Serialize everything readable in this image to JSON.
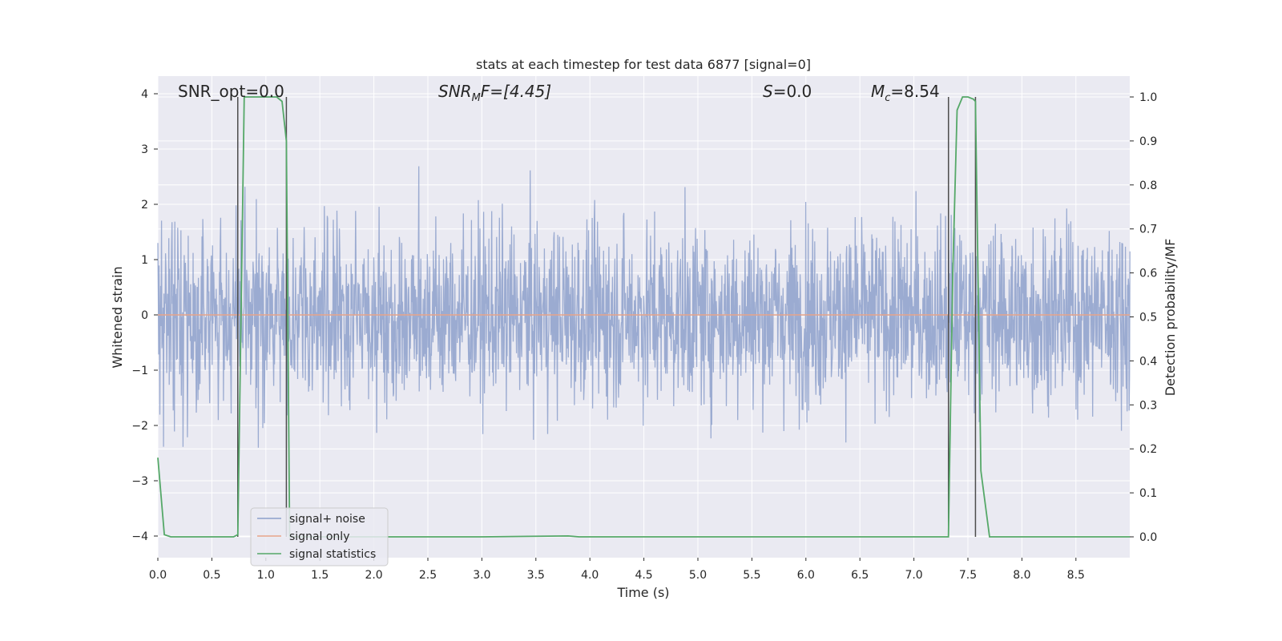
{
  "chart_data": {
    "type": "line",
    "title": "stats at each timestep for test data 6877 [signal=0]",
    "xlabel": "Time (s)",
    "ylabel": "Whitened strain",
    "ylabel_right": "Detection probability/MF",
    "xlim": [
      0.0,
      9.0
    ],
    "ylim": [
      -4.4,
      4.3
    ],
    "ylim_right": [
      -0.05,
      1.03
    ],
    "x_ticks": [
      "0.0",
      "0.5",
      "1.0",
      "1.5",
      "2.0",
      "2.5",
      "3.0",
      "3.5",
      "4.0",
      "4.5",
      "5.0",
      "5.5",
      "6.0",
      "6.5",
      "7.0",
      "7.5",
      "8.0",
      "8.5"
    ],
    "y_ticks": [
      "4",
      "3",
      "2",
      "1",
      "0",
      "−1",
      "−2",
      "−3",
      "−4"
    ],
    "y_right_ticks": [
      "1.0",
      "0.9",
      "0.8",
      "0.7",
      "0.6",
      "0.5",
      "0.4",
      "0.3",
      "0.2",
      "0.1",
      "0.0"
    ],
    "grid": true,
    "legend_position": "lower-left",
    "annotations": {
      "snr_opt": "SNR_opt=0.0",
      "snr_mf_main": "SNR",
      "snr_mf_sub": "M",
      "snr_mf_rest": "F=[4.45]",
      "s_main": "S",
      "s_rest": "=0.0",
      "mc_main": "M",
      "mc_sub": "c",
      "mc_rest": "=8.54"
    },
    "vertical_markers": [
      0.74,
      1.19,
      7.32,
      7.57
    ],
    "series": [
      {
        "name": "signal+ noise",
        "color": "#8da0cb",
        "description_values": "whitened strain noise, approx. within [-3.7, 3.95]"
      },
      {
        "name": "signal only",
        "color": "#e8a58a",
        "values": "zero everywhere"
      },
      {
        "name": "signal statistics",
        "color": "#55a868",
        "axis": "right",
        "x": [
          0.0,
          0.06,
          0.12,
          0.2,
          0.4,
          0.6,
          0.7,
          0.74,
          0.77,
          0.8,
          0.9,
          1.0,
          1.1,
          1.15,
          1.19,
          1.22,
          1.3,
          2.0,
          3.0,
          3.8,
          3.9,
          4.5,
          5.0,
          6.0,
          7.0,
          7.32,
          7.36,
          7.4,
          7.45,
          7.5,
          7.55,
          7.57,
          7.62,
          7.7,
          7.8,
          8.5,
          9.0
        ],
        "values": [
          0.18,
          0.005,
          0.0,
          0.0,
          0.0,
          0.0,
          0.0,
          0.005,
          0.5,
          1.0,
          1.0,
          1.0,
          1.0,
          0.99,
          0.9,
          0.0,
          0.0,
          0.0,
          0.0,
          0.002,
          0.0,
          0.0,
          0.0,
          0.0,
          0.0,
          0.0,
          0.6,
          0.97,
          1.0,
          1.0,
          0.995,
          0.99,
          0.15,
          0.0,
          0.0,
          0.0,
          0.0
        ]
      }
    ]
  }
}
